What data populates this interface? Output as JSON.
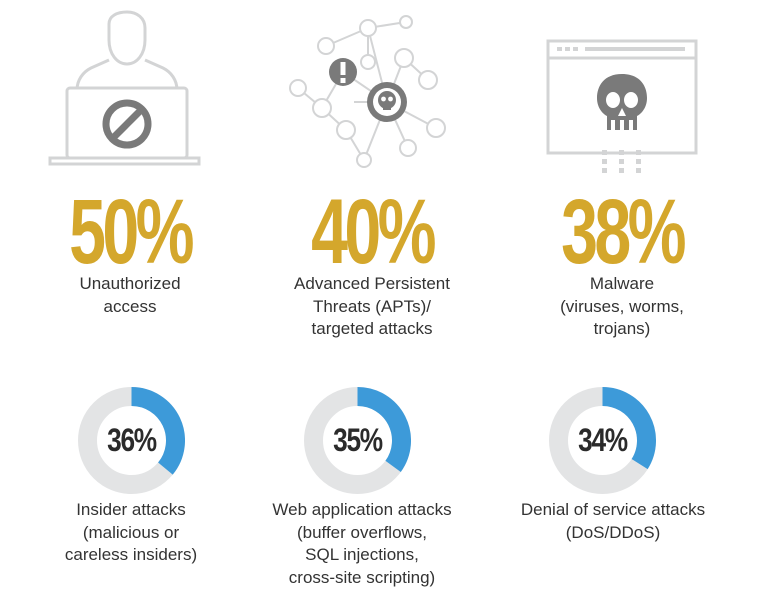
{
  "colors": {
    "accent_gold": "#d4a72c",
    "accent_blue": "#3d9ad9",
    "track_gray": "#e3e4e5",
    "icon_gray": "#c8c9ca",
    "icon_dark": "#7a7a7a",
    "text": "#333333"
  },
  "chart_data": [
    {
      "type": "table",
      "title": "",
      "rows": [
        {
          "value": "50%",
          "percent": 50,
          "label_lines": [
            "Unauthorized",
            "access"
          ],
          "icon": "person-laptop-blocked-icon"
        },
        {
          "value": "40%",
          "percent": 40,
          "label_lines": [
            "Advanced Persistent",
            "Threats (APTs)/",
            "targeted attacks"
          ],
          "icon": "network-nodes-skull-icon"
        },
        {
          "value": "38%",
          "percent": 38,
          "label_lines": [
            "Malware",
            "(viruses, worms,",
            "trojans)"
          ],
          "icon": "browser-window-skull-icon"
        }
      ]
    },
    {
      "type": "pie",
      "title": "",
      "slices": [
        {
          "value": "36%",
          "percent": 36,
          "label_lines": [
            "Insider attacks",
            "(malicious or",
            "careless insiders)"
          ]
        },
        {
          "value": "35%",
          "percent": 35,
          "label_lines": [
            "Web application attacks",
            "(buffer overflows,",
            "SQL injections,",
            "cross-site scripting)"
          ]
        },
        {
          "value": "34%",
          "percent": 34,
          "label_lines": [
            "Denial of service attacks",
            "(DoS/DDoS)"
          ]
        }
      ]
    }
  ]
}
